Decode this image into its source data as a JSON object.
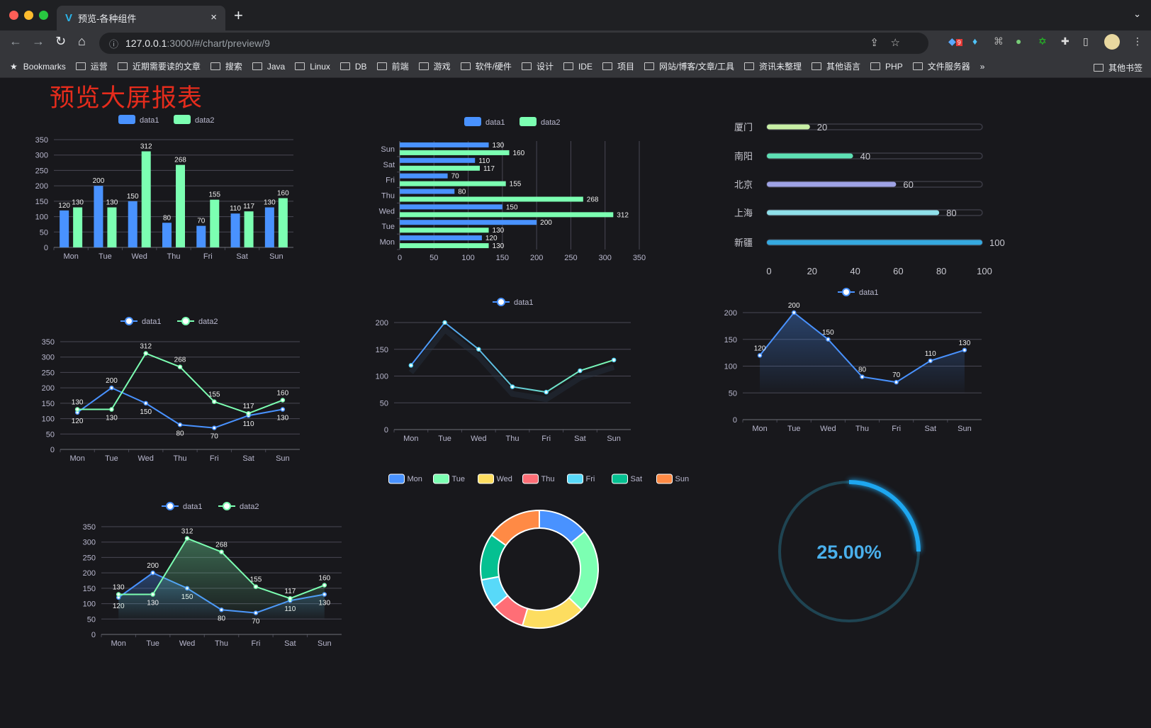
{
  "browser": {
    "tab_title": "预览-各种组件",
    "tab_close": "×",
    "new_tab": "+",
    "tab_menu": "⌄",
    "url_host": "127.0.0.1",
    "url_path": ":3000/#/chart/preview/9",
    "extension_badge": "9",
    "bookmarks": [
      "Bookmarks",
      "运营",
      "近期需要读的文章",
      "搜索",
      "Java",
      "Linux",
      "DB",
      "前端",
      "游戏",
      "软件/硬件",
      "设计",
      "IDE",
      "项目",
      "网站/博客/文章/工具",
      "资讯未整理",
      "其他语言",
      "PHP",
      "文件服务器"
    ],
    "bookmarks_more": "»",
    "other_bookmarks": "其他书签"
  },
  "page": {
    "title": "预览大屏报表"
  },
  "colors": {
    "data1": "#4992ff",
    "data2": "#7cffb2",
    "title": "#e52c1c",
    "grid": "#484753",
    "axis_text": "#b9b8ce",
    "background": "#18181c"
  },
  "chart_data": [
    {
      "type": "bar",
      "categories": [
        "Mon",
        "Tue",
        "Wed",
        "Thu",
        "Fri",
        "Sat",
        "Sun"
      ],
      "series": [
        {
          "name": "data1",
          "values": [
            120,
            200,
            150,
            80,
            70,
            110,
            130
          ]
        },
        {
          "name": "data2",
          "values": [
            130,
            130,
            312,
            268,
            155,
            117,
            160
          ]
        }
      ],
      "ylim": [
        0,
        350
      ],
      "yticks": [
        0,
        50,
        100,
        150,
        200,
        250,
        300,
        350
      ],
      "legend": "top",
      "grid": true
    },
    {
      "type": "bar",
      "orientation": "horizontal",
      "categories": [
        "Mon",
        "Tue",
        "Wed",
        "Thu",
        "Fri",
        "Sat",
        "Sun"
      ],
      "series": [
        {
          "name": "data1",
          "values": [
            120,
            200,
            150,
            80,
            70,
            110,
            130
          ]
        },
        {
          "name": "data2",
          "values": [
            130,
            130,
            312,
            268,
            155,
            117,
            160
          ]
        }
      ],
      "xlim": [
        0,
        350
      ],
      "xticks": [
        0,
        50,
        100,
        150,
        200,
        250,
        300,
        350
      ],
      "legend": "top",
      "grid": true
    },
    {
      "type": "bar",
      "orientation": "horizontal",
      "style": "progress",
      "categories": [
        "厦门",
        "南阳",
        "北京",
        "上海",
        "新疆"
      ],
      "values": [
        20,
        40,
        60,
        80,
        100
      ],
      "colors": [
        "#c8efa5",
        "#5ee0b4",
        "#9fa3e6",
        "#8fe0ea",
        "#35a9e0"
      ],
      "xlim": [
        0,
        100
      ],
      "xticks": [
        0,
        20,
        40,
        60,
        80,
        100
      ]
    },
    {
      "type": "line",
      "categories": [
        "Mon",
        "Tue",
        "Wed",
        "Thu",
        "Fri",
        "Sat",
        "Sun"
      ],
      "series": [
        {
          "name": "data1",
          "values": [
            120,
            200,
            150,
            80,
            70,
            110,
            130
          ]
        },
        {
          "name": "data2",
          "values": [
            130,
            130,
            312,
            268,
            155,
            117,
            160
          ]
        }
      ],
      "ylim": [
        0,
        350
      ],
      "yticks": [
        0,
        50,
        100,
        150,
        200,
        250,
        300,
        350
      ],
      "legend": "top",
      "grid": true
    },
    {
      "type": "line",
      "categories": [
        "Mon",
        "Tue",
        "Wed",
        "Thu",
        "Fri",
        "Sat",
        "Sun"
      ],
      "series": [
        {
          "name": "data1",
          "values": [
            120,
            200,
            150,
            80,
            70,
            110,
            130
          ]
        }
      ],
      "ylim": [
        0,
        200
      ],
      "yticks": [
        0,
        50,
        100,
        150,
        200
      ],
      "legend": "top",
      "grid": true,
      "gradient_line": true
    },
    {
      "type": "area",
      "categories": [
        "Mon",
        "Tue",
        "Wed",
        "Thu",
        "Fri",
        "Sat",
        "Sun"
      ],
      "series": [
        {
          "name": "data1",
          "values": [
            120,
            200,
            150,
            80,
            70,
            110,
            130
          ]
        }
      ],
      "ylim": [
        0,
        200
      ],
      "yticks": [
        0,
        50,
        100,
        150,
        200
      ],
      "legend": "top",
      "grid": true
    },
    {
      "type": "area",
      "categories": [
        "Mon",
        "Tue",
        "Wed",
        "Thu",
        "Fri",
        "Sat",
        "Sun"
      ],
      "series": [
        {
          "name": "data1",
          "values": [
            120,
            200,
            150,
            80,
            70,
            110,
            130
          ]
        },
        {
          "name": "data2",
          "values": [
            130,
            130,
            312,
            268,
            155,
            117,
            160
          ]
        }
      ],
      "ylim": [
        0,
        350
      ],
      "yticks": [
        0,
        50,
        100,
        150,
        200,
        250,
        300,
        350
      ],
      "legend": "top",
      "grid": true
    },
    {
      "type": "pie",
      "style": "donut",
      "categories": [
        "Mon",
        "Tue",
        "Wed",
        "Thu",
        "Fri",
        "Sat",
        "Sun"
      ],
      "values": [
        120,
        200,
        150,
        80,
        70,
        110,
        130
      ],
      "colors": [
        "#4992ff",
        "#7cffb2",
        "#fddd60",
        "#ff6e76",
        "#58d9f9",
        "#05c091",
        "#ff8a45"
      ],
      "legend": "top"
    },
    {
      "type": "gauge",
      "value": 25,
      "label": "25.00%",
      "color": "#1ea7f0",
      "track_color": "#1f4452"
    }
  ]
}
